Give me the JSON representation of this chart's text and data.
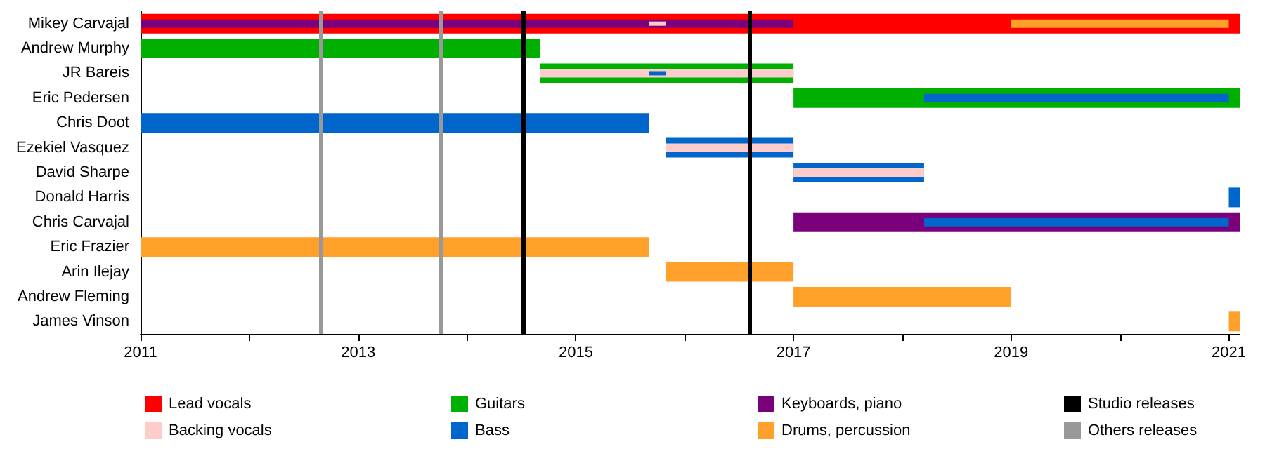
{
  "chart_data": {
    "type": "bar",
    "orientation": "horizontal",
    "categories": [
      "Mikey Carvajal",
      "Andrew Murphy",
      "JR Bareis",
      "Eric Pedersen",
      "Chris Doot",
      "Ezekiel Vasquez",
      "David Sharpe",
      "Donald Harris",
      "Chris Carvajal",
      "Eric Frazier",
      "Arin Ilejay",
      "Andrew Fleming",
      "James Vinson"
    ],
    "series": [
      {
        "name": "Lead vocals",
        "color": "#ff0000",
        "base": [
          2011,
          null,
          null,
          null,
          null,
          null,
          null,
          null,
          null,
          null,
          null,
          null,
          null
        ],
        "values": [
          10.1,
          null,
          null,
          null,
          null,
          null,
          null,
          null,
          null,
          null,
          null,
          null,
          null
        ]
      },
      {
        "name": "Backing vocals",
        "color": "#ffcccc",
        "base": [
          2015.67,
          null,
          2014.67,
          null,
          null,
          2015.83,
          2017,
          null,
          null,
          null,
          null,
          null,
          null
        ],
        "values": [
          0.16,
          null,
          2.33,
          null,
          null,
          1.17,
          1.2,
          null,
          null,
          null,
          null,
          null,
          null
        ]
      },
      {
        "name": "Guitars",
        "color": "#00b000",
        "base": [
          null,
          2011,
          2014.67,
          2017,
          null,
          null,
          null,
          null,
          null,
          null,
          null,
          null,
          null
        ],
        "values": [
          null,
          3.67,
          2.33,
          4.1,
          null,
          null,
          null,
          null,
          null,
          null,
          null,
          null,
          null
        ]
      },
      {
        "name": "Bass",
        "color": "#0066cc",
        "base": [
          null,
          null,
          2015.67,
          2018.2,
          2011,
          2015.83,
          2017,
          2021,
          2018.2,
          null,
          null,
          null,
          null
        ],
        "values": [
          null,
          null,
          0.16,
          2.8,
          4.67,
          1.17,
          1.2,
          0.1,
          2.8,
          null,
          null,
          null,
          null
        ]
      },
      {
        "name": "Keyboards, piano",
        "color": "#7b007b",
        "base": [
          2011,
          null,
          null,
          null,
          null,
          null,
          null,
          null,
          2017,
          null,
          null,
          null,
          null
        ],
        "values": [
          6,
          null,
          null,
          null,
          null,
          null,
          null,
          null,
          4.1,
          null,
          null,
          null,
          null
        ]
      },
      {
        "name": "Drums, percussion",
        "color": "#ffa02a",
        "base": [
          2019,
          null,
          null,
          null,
          null,
          null,
          null,
          null,
          null,
          2011,
          2015.83,
          2017,
          2021
        ],
        "values": [
          2,
          null,
          null,
          null,
          null,
          null,
          null,
          null,
          null,
          4.67,
          1.17,
          2,
          0.1
        ]
      }
    ],
    "ref_lines": [
      {
        "axis": "x",
        "value": 2014.51,
        "label": "Studio releases",
        "color": "#000000"
      },
      {
        "axis": "x",
        "value": 2016.6,
        "color": "#000000"
      },
      {
        "axis": "x",
        "value": 2012.66,
        "label": "Others releases",
        "color": "#999999"
      },
      {
        "axis": "x",
        "value": 2013.75,
        "color": "#999999"
      }
    ],
    "xlim": [
      2011,
      2021.1
    ],
    "xticks": [
      2011,
      {
        "value": 2012,
        "label": null
      },
      2013,
      {
        "value": 2014,
        "label": null
      },
      2015,
      {
        "value": 2016,
        "label": null
      },
      2017,
      {
        "value": 2018,
        "label": null
      },
      2019,
      {
        "value": 2020,
        "label": null
      },
      2021
    ],
    "grid": false,
    "legend": "bottom"
  }
}
